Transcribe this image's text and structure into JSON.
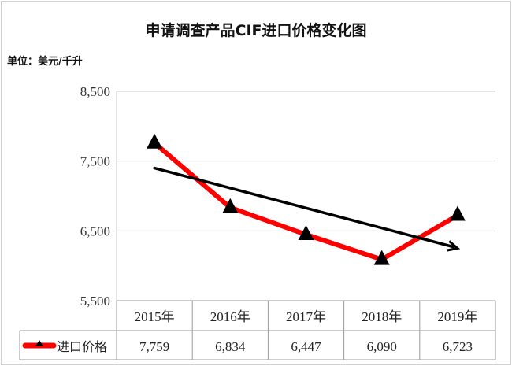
{
  "chart_data": {
    "type": "line",
    "title": "申请调查产品CIF进口价格变化图",
    "unit_label": "单位：美元/千升",
    "categories": [
      "2015年",
      "2016年",
      "2017年",
      "2018年",
      "2019年"
    ],
    "series": [
      {
        "name": "进口价格",
        "values": [
          7759,
          6834,
          6447,
          6090,
          6723
        ],
        "value_labels": [
          "7,759",
          "6,834",
          "6,447",
          "6,090",
          "6,723"
        ],
        "color": "#ff0000",
        "marker": "triangle",
        "marker_color": "#000000"
      }
    ],
    "yticks": [
      "5,500",
      "6,500",
      "7,500",
      "8,500"
    ],
    "ytick_values": [
      5500,
      6500,
      7500,
      8500
    ],
    "ylim": [
      5500,
      8500
    ],
    "grid": true,
    "legend": "data-table",
    "trend_arrow": {
      "from_category": "2015年",
      "to_category": "2019年",
      "from_value": 7400,
      "to_value": 6250,
      "color": "#000000"
    }
  }
}
